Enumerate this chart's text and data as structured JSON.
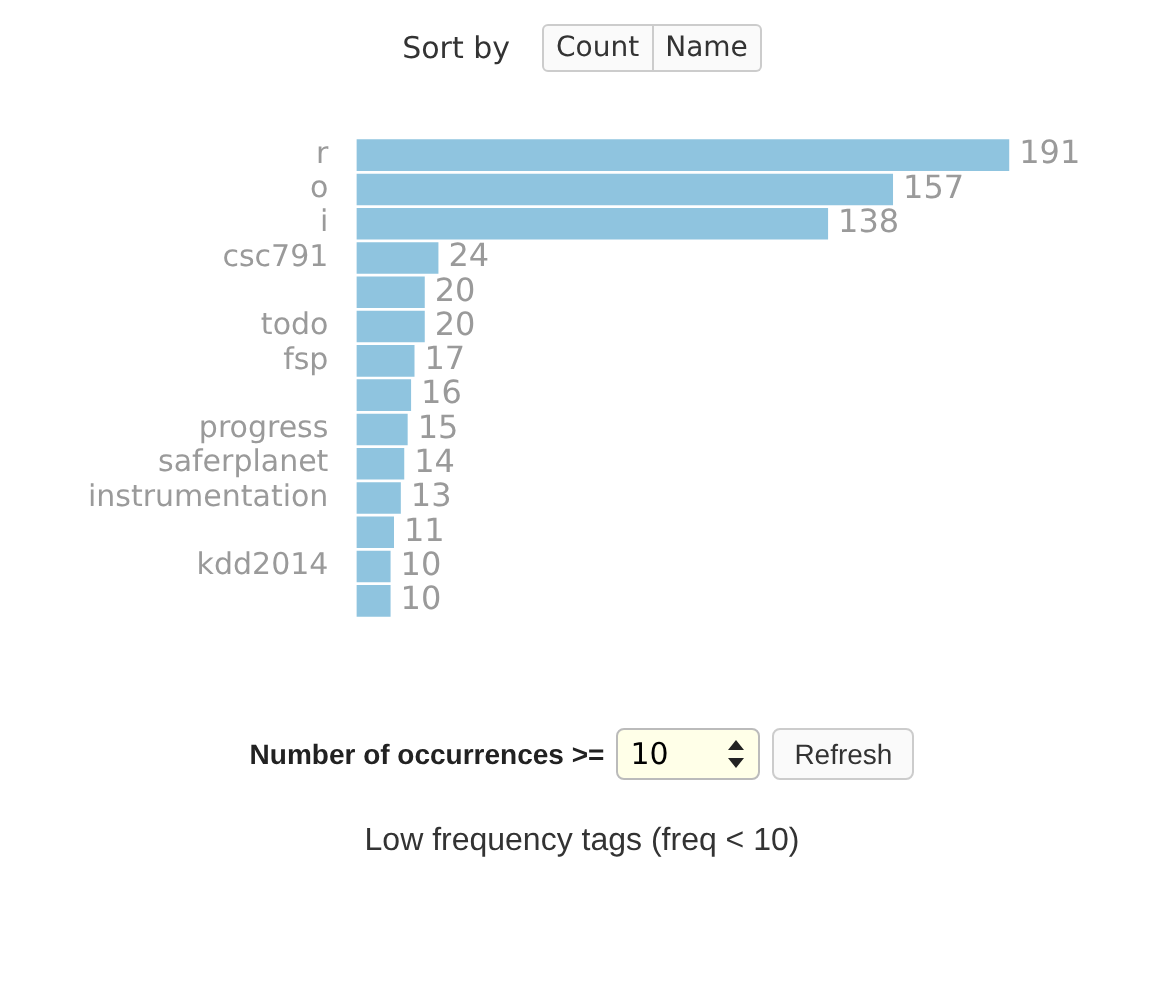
{
  "chart_data": {
    "type": "bar",
    "orientation": "horizontal",
    "categories": [
      "r",
      "o",
      "i",
      "csc791",
      null,
      "todo",
      "fsp",
      null,
      "progress",
      "saferplanet",
      "instrumentation",
      null,
      "kdd2014",
      null
    ],
    "values": [
      191,
      157,
      138,
      24,
      20,
      20,
      17,
      16,
      15,
      14,
      13,
      11,
      10,
      10
    ],
    "color": "#8fc4df",
    "data_labels": true,
    "legend": false,
    "annotations": [
      "Sort by",
      "Count",
      "Name",
      "Number of occurrences >=",
      "10",
      "Refresh",
      "Low frequency tags (freq < 10)"
    ]
  }
}
